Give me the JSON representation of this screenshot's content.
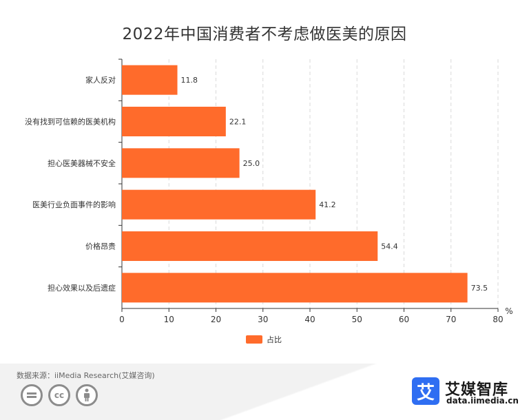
{
  "source": "数据来源：iiMedia Research(艾媒咨询)",
  "brand": {
    "logo_glyph": "艾",
    "name": "艾媒智库",
    "url": "data.iimedia.cn"
  },
  "license_icons": [
    "equals-icon",
    "cc-icon",
    "person-icon"
  ],
  "colors": {
    "bar": "#ff6b2b",
    "grid": "#d9d9d9",
    "axis": "#333333",
    "text": "#333333"
  },
  "chart_data": {
    "type": "bar",
    "orientation": "horizontal",
    "title": "2022年中国消费者不考虑做医美的原因",
    "categories": [
      "家人反对",
      "没有找到可信赖的医美机构",
      "担心医美器械不安全",
      "医美行业负面事件的影响",
      "价格昂贵",
      "担心效果以及后遗症"
    ],
    "series": [
      {
        "name": "占比",
        "values": [
          11.8,
          22.1,
          25.0,
          41.2,
          54.4,
          73.5
        ]
      }
    ],
    "value_labels": [
      "11.8",
      "22.1",
      "25.0",
      "41.2",
      "54.4",
      "73.5"
    ],
    "x_ticks": [
      0,
      10,
      20,
      30,
      40,
      50,
      60,
      70,
      80
    ],
    "xlim": [
      0,
      80
    ],
    "xlabel": "%",
    "ylabel": "",
    "grid": "vertical dashed",
    "legend": "bottom-center"
  }
}
